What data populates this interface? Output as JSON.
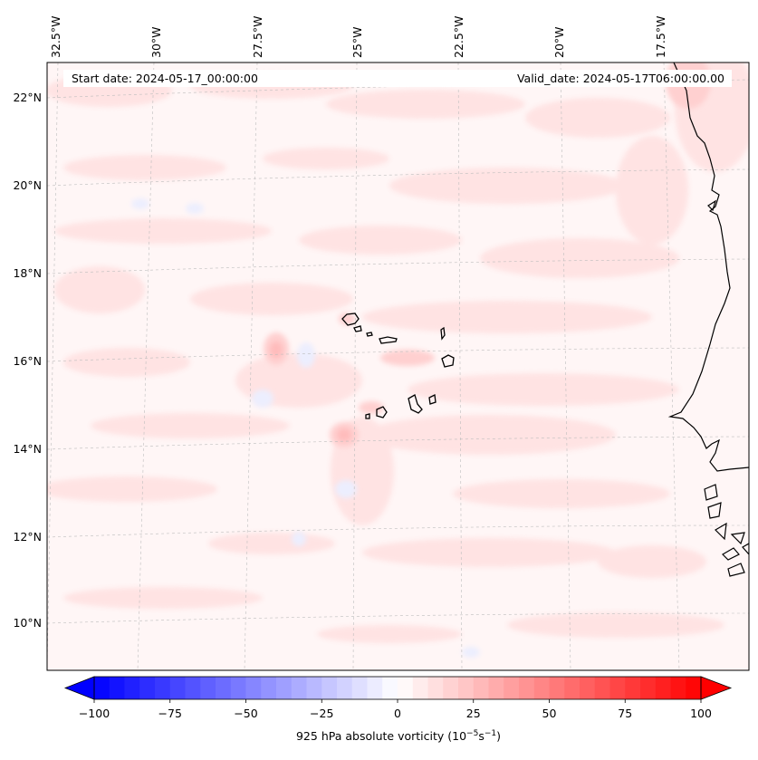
{
  "header": {
    "start_date": "Start date: 2024-05-17_00:00:00",
    "valid_date": "Valid_date: 2024-05-17T06:00:00.00"
  },
  "map": {
    "projection_region": "Eastern tropical Atlantic / Cabo Verde / West Africa",
    "longitude_labels": [
      "32.5°W",
      "30°W",
      "27.5°W",
      "25°W",
      "22.5°W",
      "20°W",
      "17.5°W"
    ],
    "latitude_labels": [
      "22°N",
      "20°N",
      "18°N",
      "16°N",
      "14°N",
      "12°N",
      "10°N"
    ],
    "features": [
      "coastline-west-africa",
      "cabo-verde-islands",
      "gridlines"
    ],
    "field_colors": {
      "background": "#fff5f5",
      "weak_positive": "#ffe3e3",
      "moderate_positive": "#ffcccc",
      "negative": "#eef0ff"
    }
  },
  "colorbar": {
    "label": "925 hPa absolute vorticity (10",
    "label_exp1": "−5",
    "label_mid": "s",
    "label_exp2": "−1",
    "label_end": ")",
    "ticks": [
      "−100",
      "−75",
      "−50",
      "−25",
      "0",
      "25",
      "50",
      "75",
      "100"
    ],
    "tick_values": [
      -100,
      -75,
      -50,
      -25,
      0,
      25,
      50,
      75,
      100
    ],
    "min": -100,
    "max": 100,
    "step": 5,
    "cmap": "bwr",
    "extend": "both"
  }
}
